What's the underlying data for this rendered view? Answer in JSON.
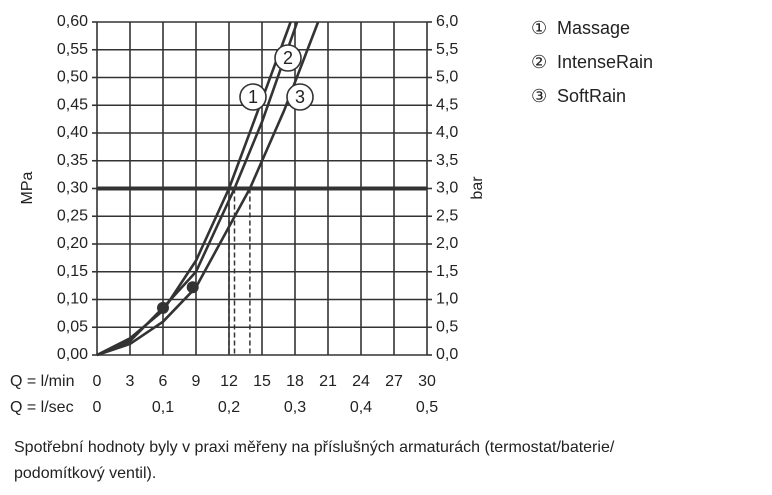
{
  "chart_data": {
    "type": "line",
    "y_label": "MPa",
    "y2_label": "bar",
    "x_row_label": "Q = l/min",
    "x2_row_label": "Q = l/sec",
    "xlim": [
      0,
      30
    ],
    "xticks": [
      0,
      3,
      6,
      9,
      12,
      15,
      18,
      21,
      24,
      27,
      30
    ],
    "x2lim": [
      0,
      0.5
    ],
    "x2ticks": [
      0,
      {
        "value": 0.1,
        "label": "0,1"
      },
      {
        "value": 0.2,
        "label": "0,2"
      },
      {
        "value": 0.3,
        "label": "0,3"
      },
      {
        "value": 0.4,
        "label": "0,4"
      },
      {
        "value": 0.5,
        "label": "0,5"
      }
    ],
    "ylim": [
      0,
      0.6
    ],
    "yticks": [
      {
        "value": 0,
        "label": "0,00"
      },
      {
        "value": 0.05,
        "label": "0,05"
      },
      {
        "value": 0.1,
        "label": "0,10"
      },
      {
        "value": 0.15,
        "label": "0,15"
      },
      {
        "value": 0.2,
        "label": "0,20"
      },
      {
        "value": 0.25,
        "label": "0,25"
      },
      {
        "value": 0.3,
        "label": "0,30"
      },
      {
        "value": 0.35,
        "label": "0,35"
      },
      {
        "value": 0.4,
        "label": "0,40"
      },
      {
        "value": 0.45,
        "label": "0,45"
      },
      {
        "value": 0.5,
        "label": "0,50"
      },
      {
        "value": 0.55,
        "label": "0,55"
      },
      {
        "value": 0.6,
        "label": "0,60"
      }
    ],
    "y2lim": [
      0,
      6
    ],
    "y2ticks": [
      {
        "value": 0,
        "label": "0,0"
      },
      {
        "value": 0.5,
        "label": "0,5"
      },
      {
        "value": 1,
        "label": "1,0"
      },
      {
        "value": 1.5,
        "label": "1,5"
      },
      {
        "value": 2,
        "label": "2,0"
      },
      {
        "value": 2.5,
        "label": "2,5"
      },
      {
        "value": 3,
        "label": "3,0"
      },
      {
        "value": 3.5,
        "label": "3,5"
      },
      {
        "value": 4,
        "label": "4,0"
      },
      {
        "value": 4.5,
        "label": "4,5"
      },
      {
        "value": 5,
        "label": "5,0"
      },
      {
        "value": 5.5,
        "label": "5,5"
      },
      {
        "value": 6,
        "label": "6,0"
      }
    ],
    "grid": true,
    "reference_y": 0.3,
    "reference_x": [
      12,
      12.5,
      13.9
    ],
    "series": [
      {
        "name": "Massage",
        "marker": "①",
        "curve_label": "1",
        "color": "#333333",
        "x": [
          0,
          3,
          6,
          9,
          12,
          15,
          17.6
        ],
        "values": [
          0,
          0.03,
          0.08,
          0.17,
          0.3,
          0.46,
          0.6
        ]
      },
      {
        "name": "IntenseRain",
        "marker": "②",
        "curve_label": "2",
        "color": "#333333",
        "x": [
          0,
          3,
          6,
          9,
          12.5,
          15,
          18.2
        ],
        "values": [
          0,
          0.025,
          0.085,
          0.15,
          0.3,
          0.42,
          0.6
        ]
      },
      {
        "name": "SoftRain",
        "marker": "③",
        "curve_label": "3",
        "color": "#333333",
        "x": [
          0,
          3,
          6,
          9,
          13.9,
          17,
          20.1
        ],
        "values": [
          0,
          0.02,
          0.06,
          0.122,
          0.3,
          0.44,
          0.6
        ]
      }
    ],
    "points": {
      "x": [
        6,
        8.7
      ],
      "values": [
        0.085,
        0.122
      ]
    },
    "note_lines": [
      "Spotřební hodnoty byly v praxi měřeny na příslušných armaturách (termostat/baterie/",
      "podomítkový ventil)."
    ]
  }
}
